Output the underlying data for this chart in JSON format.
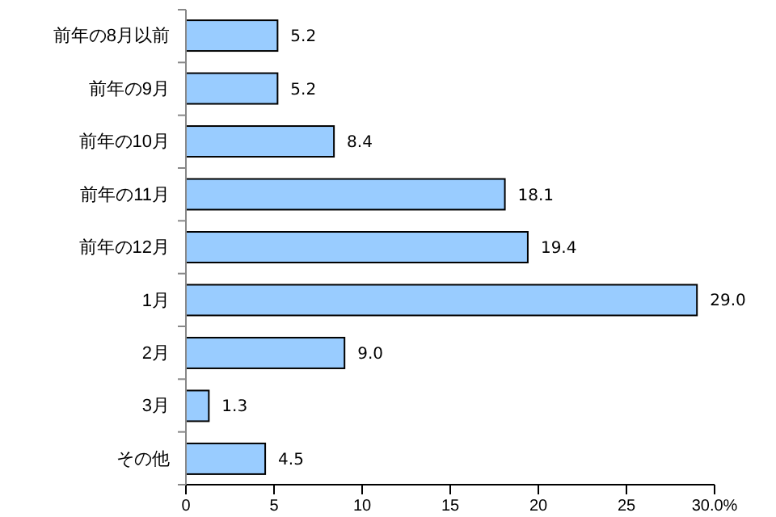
{
  "chart_data": {
    "type": "bar",
    "orientation": "horizontal",
    "categories": [
      "前年の8月以前",
      "前年の9月",
      "前年の10月",
      "前年の11月",
      "前年の12月",
      "1月",
      "2月",
      "3月",
      "その他"
    ],
    "values": [
      5.2,
      5.2,
      8.4,
      18.1,
      19.4,
      29.0,
      9.0,
      1.3,
      4.5
    ],
    "value_labels": [
      "5.2",
      "5.2",
      "8.4",
      "18.1",
      "19.4",
      "29.0",
      "9.0",
      "1.3",
      "4.5"
    ],
    "color": "#99ccff",
    "xlim": [
      0,
      30
    ],
    "xticks": [
      0,
      5,
      10,
      15,
      20,
      25,
      {
        "value": 30,
        "label": "30.0%"
      }
    ],
    "grid": false
  }
}
